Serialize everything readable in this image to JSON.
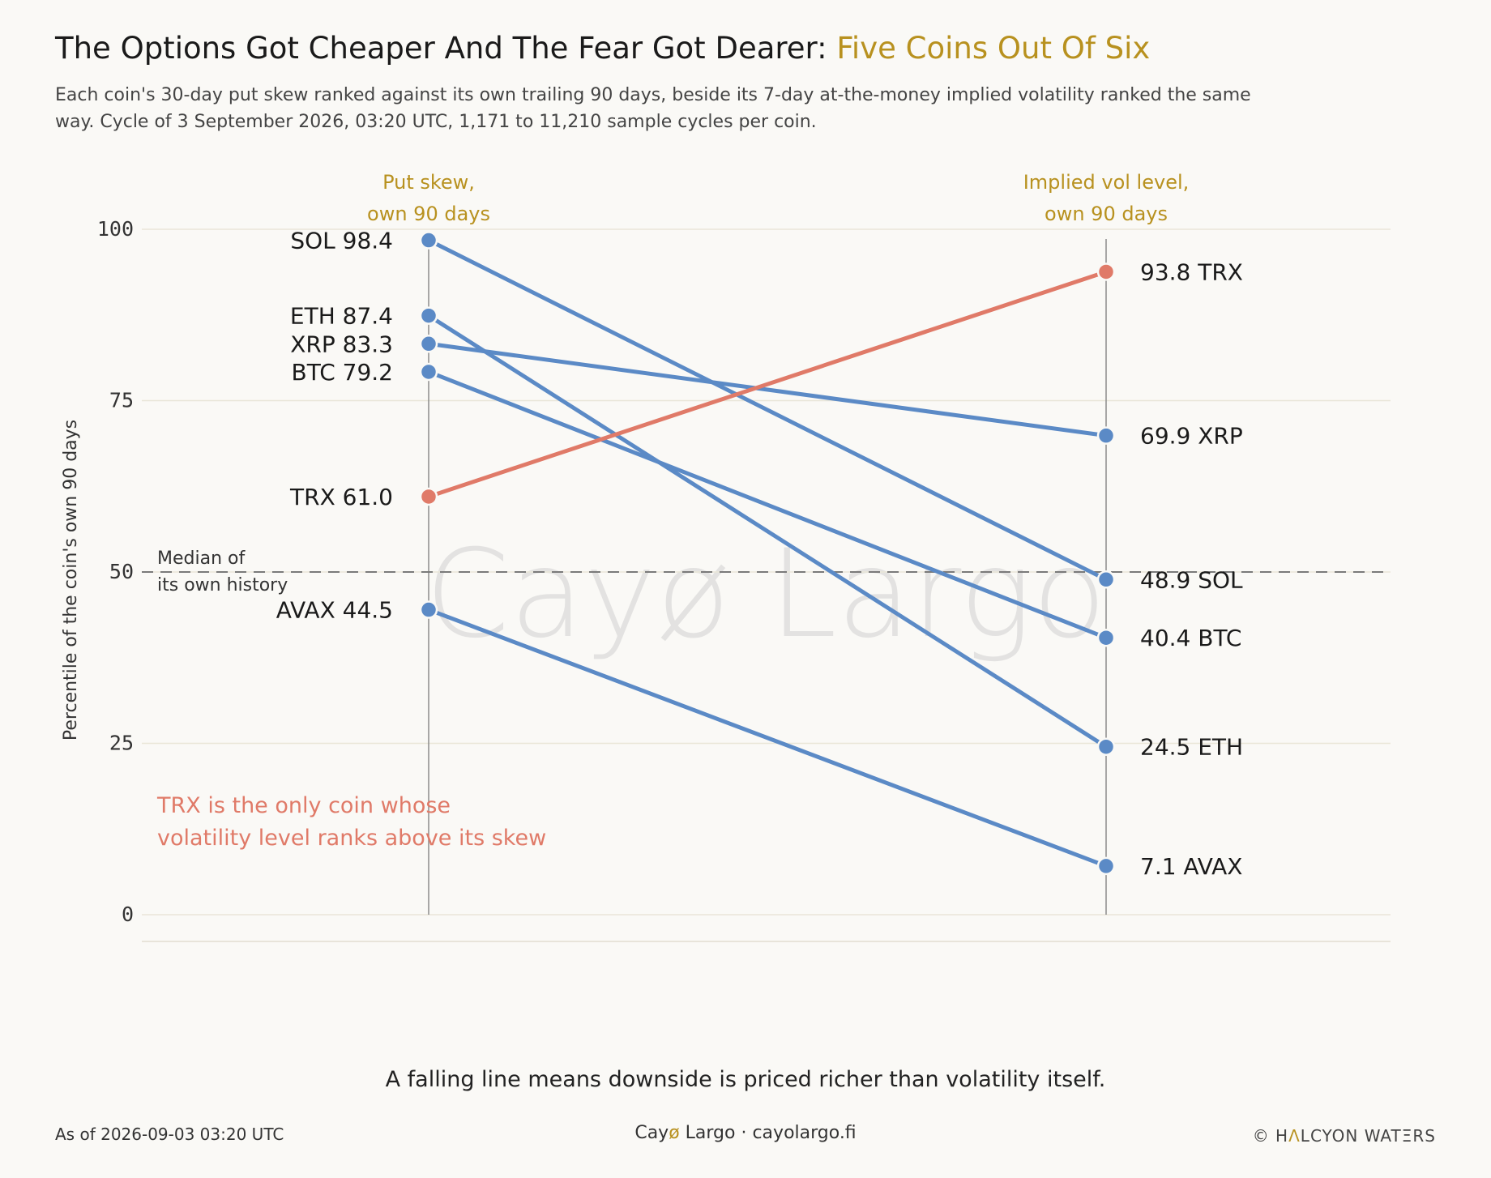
{
  "header": {
    "title_main": "The Options Got Cheaper And The Fear Got Dearer: ",
    "title_accent": "Five Coins Out Of Six",
    "subtitle": "Each coin's 30-day put skew ranked against its own trailing 90 days, beside its 7-day at-the-money implied volatility ranked the same way. Cycle of 3 September 2026, 03:20 UTC, 1,171 to 11,210 sample cycles per coin."
  },
  "chart_data": {
    "type": "line",
    "subtype": "slope",
    "x": [
      "Put skew, own 90 days",
      "Implied vol level, own 90 days"
    ],
    "left_axis_title": [
      "Put skew,",
      "own 90 days"
    ],
    "right_axis_title": [
      "Implied vol level,",
      "own 90 days"
    ],
    "ylabel": "Percentile of the coin's own 90 days",
    "ylim": [
      0,
      100
    ],
    "yticks": [
      0,
      25,
      50,
      75,
      100
    ],
    "grid": true,
    "reference_line": {
      "y": 50,
      "label": [
        "Median of",
        "its own history"
      ],
      "style": "dashed"
    },
    "colors": {
      "down": "#5b8ac6",
      "up": "#e07a68",
      "accent": "#b8911f"
    },
    "series": [
      {
        "name": "SOL",
        "values": [
          98.4,
          48.9
        ],
        "left_label": "SOL 98.4",
        "right_label": "48.9 SOL",
        "direction": "down"
      },
      {
        "name": "ETH",
        "values": [
          87.4,
          24.5
        ],
        "left_label": "ETH 87.4",
        "right_label": "24.5 ETH",
        "direction": "down"
      },
      {
        "name": "XRP",
        "values": [
          83.3,
          69.9
        ],
        "left_label": "XRP 83.3",
        "right_label": "69.9 XRP",
        "direction": "down"
      },
      {
        "name": "BTC",
        "values": [
          79.2,
          40.4
        ],
        "left_label": "BTC 79.2",
        "right_label": "40.4 BTC",
        "direction": "down"
      },
      {
        "name": "TRX",
        "values": [
          61.0,
          93.8
        ],
        "left_label": "TRX 61.0",
        "right_label": "93.8 TRX",
        "direction": "up"
      },
      {
        "name": "AVAX",
        "values": [
          44.5,
          7.1
        ],
        "left_label": "AVAX 44.5",
        "right_label": "7.1 AVAX",
        "direction": "down"
      }
    ],
    "annotation": [
      "TRX is the only coin whose",
      "volatility level ranks above its skew"
    ],
    "watermark": "Cayø Largo"
  },
  "takeaway": "A falling line means downside is priced richer than volatility itself.",
  "footer": {
    "asof": "As of 2026-09-03 03:20 UTC",
    "brand_pre": "Cay",
    "brand_slash": "ø",
    "brand_post": " Largo  ·  cayolargo.fi",
    "copyright_pre": "© H",
    "copyright_acc": "Λ",
    "copyright_post": "LCYON WATΞRS"
  }
}
